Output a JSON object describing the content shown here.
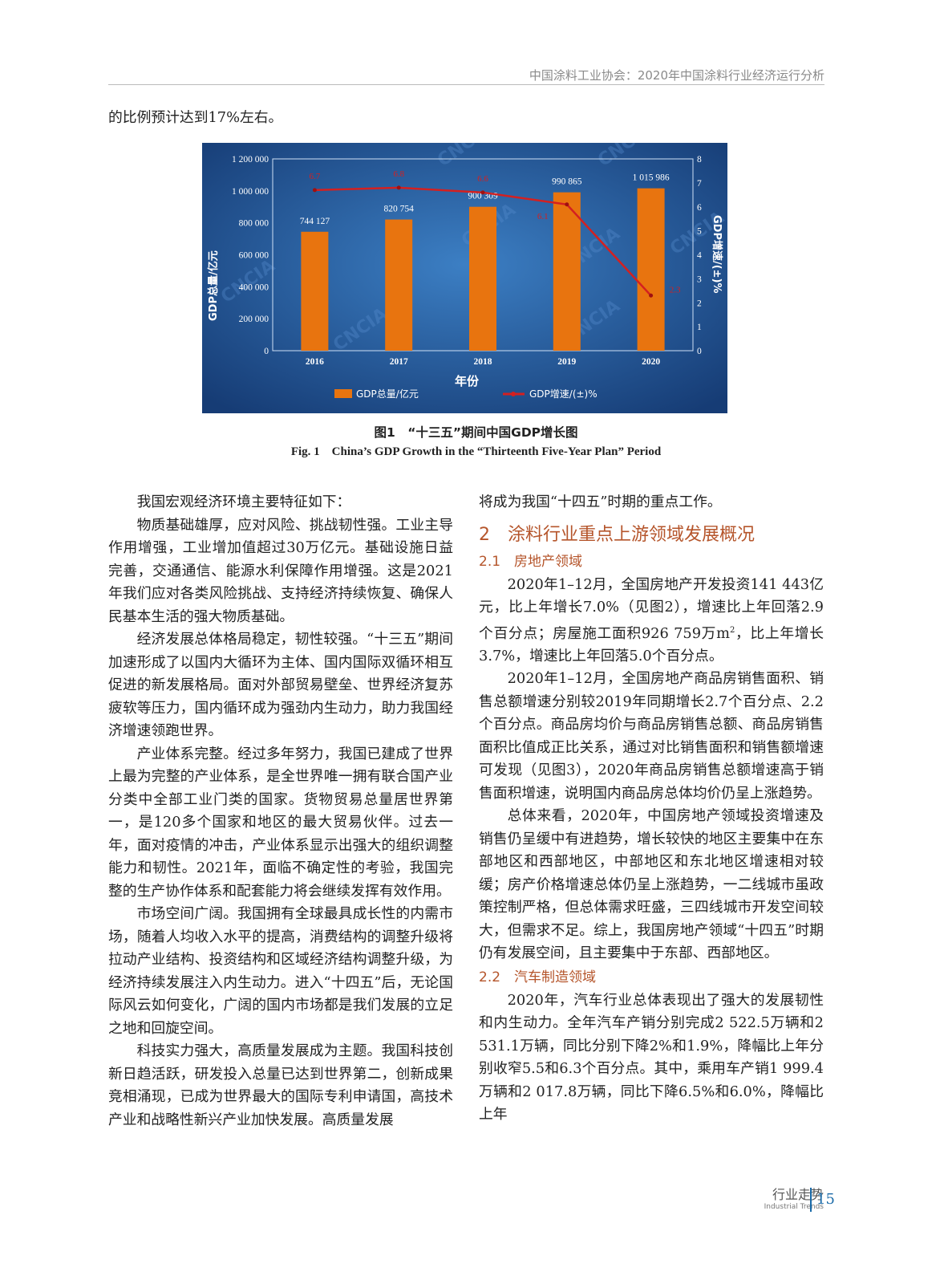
{
  "header": {
    "running_title": "中国涂料工业协会：2020年中国涂料行业经济运行分析"
  },
  "intro_line": "的比例预计达到17%左右。",
  "chart_data": {
    "type": "bar+line",
    "categories": [
      "2016",
      "2017",
      "2018",
      "2019",
      "2020"
    ],
    "series": [
      {
        "name": "GDP总量/亿元",
        "type": "bar",
        "axis": "left",
        "values": [
          744127,
          820754,
          900309,
          990865,
          1015986
        ],
        "labels": [
          "744 127",
          "820 754",
          "900 309",
          "990 865",
          "1 015 986"
        ],
        "color": "#e8740f"
      },
      {
        "name": "GDP增速/(±)%",
        "type": "line",
        "axis": "right",
        "values": [
          6.7,
          6.8,
          6.6,
          6.1,
          2.3
        ],
        "labels": [
          "6.7",
          "6.8",
          "6.6",
          "6.1",
          "2.3"
        ],
        "color": "#d42020"
      }
    ],
    "xlabel": "年份",
    "ylabel": "GDP总量/亿元",
    "y2label": "GDP增速/(±)%",
    "ylim": [
      0,
      1200000
    ],
    "y2lim": [
      0,
      8
    ],
    "yticks": [
      "0",
      "200 000",
      "400 000",
      "600 000",
      "800 000",
      "1 000 000",
      "1 200 000"
    ],
    "y2ticks": [
      "0",
      "1",
      "2",
      "3",
      "4",
      "5",
      "6",
      "7",
      "8"
    ],
    "legend": "bottom",
    "background": "#1e4f8f",
    "watermark": "CNCIA"
  },
  "caption": {
    "cn": "图1　“十三五”期间中国GDP增长图",
    "en": "Fig. 1　China’s GDP Growth in the “Thirteenth Five-Year Plan” Period"
  },
  "left_col": [
    {
      "text": "我国宏观经济环境主要特征如下："
    },
    {
      "text": "物质基础雄厚，应对风险、挑战韧性强。工业主导作用增强，工业增加值超过30万亿元。基础设施日益完善，交通通信、能源水利保障作用增强。这是2021年我们应对各类风险挑战、支持经济持续恢复、确保人民基本生活的强大物质基础。"
    },
    {
      "text": "经济发展总体格局稳定，韧性较强。“十三五”期间加速形成了以国内大循环为主体、国内国际双循环相互促进的新发展格局。面对外部贸易壁垒、世界经济复苏疲软等压力，国内循环成为强劲内生动力，助力我国经济增速领跑世界。"
    },
    {
      "text": "产业体系完整。经过多年努力，我国已建成了世界上最为完整的产业体系，是全世界唯一拥有联合国产业分类中全部工业门类的国家。货物贸易总量居世界第一，是120多个国家和地区的最大贸易伙伴。过去一年，面对疫情的冲击，产业体系显示出强大的组织调整能力和韧性。2021年，面临不确定性的考验，我国完整的生产协作体系和配套能力将会继续发挥有效作用。"
    },
    {
      "text": "市场空间广阔。我国拥有全球最具成长性的内需市场，随着人均收入水平的提高，消费结构的调整升级将拉动产业结构、投资结构和区域经济结构调整升级，为经济持续发展注入内生动力。进入“十四五”后，无论国际风云如何变化，广阔的国内市场都是我们发展的立足之地和回旋空间。"
    },
    {
      "text": "科技实力强大，高质量发展成为主题。我国科技创新日趋活跃，研发投入总量已达到世界第二，创新成果竞相涌现，已成为世界最大的国际专利申请国，高技术产业和战略性新兴产业加快发展。高质量发展"
    }
  ],
  "right_col": {
    "cont": "将成为我国“十四五”时期的重点工作。",
    "h2": "2　涂料行业重点上游领域发展概况",
    "h3a": "2.1　房地产领域",
    "p1a": "2020年1–12月，全国房地产开发投资141 443亿元，比上年增长7.0%（见图2），增速比上年回落2.9个百分点；房屋施工面积926 759万m",
    "p1sup": "2",
    "p1b": "，比上年增长3.7%，增速比上年回落5.0个百分点。",
    "p2": "2020年1–12月，全国房地产商品房销售面积、销售总额增速分别较2019年同期增长2.7个百分点、2.2个百分点。商品房均价与商品房销售总额、商品房销售面积比值成正比关系，通过对比销售面积和销售额增速可发现（见图3），2020年商品房销售总额增速高于销售面积增速，说明国内商品房总体均价仍呈上涨趋势。",
    "p3": "总体来看，2020年，中国房地产领域投资增速及销售仍呈缓中有进趋势，增长较快的地区主要集中在东部地区和西部地区，中部地区和东北地区增速相对较缓；房产价格增速总体仍呈上涨趋势，一二线城市虽政策控制严格，但总体需求旺盛，三四线城市开发空间较大，但需求不足。综上，我国房地产领域“十四五”时期仍有发展空间，且主要集中于东部、西部地区。",
    "h3b": "2.2　汽车制造领域",
    "p4": "2020年，汽车行业总体表现出了强大的发展韧性和内生动力。全年汽车产销分别完成2 522.5万辆和2 531.1万辆，同比分别下降2%和1.9%，降幅比上年分别收窄5.5和6.3个百分点。其中，乘用车产销1 999.4万辆和2 017.8万辆，同比下降6.5%和6.0%，降幅比上年"
  },
  "footer": {
    "section_cn": "行业走势",
    "section_en": "Industrial Trends",
    "page": "15"
  }
}
